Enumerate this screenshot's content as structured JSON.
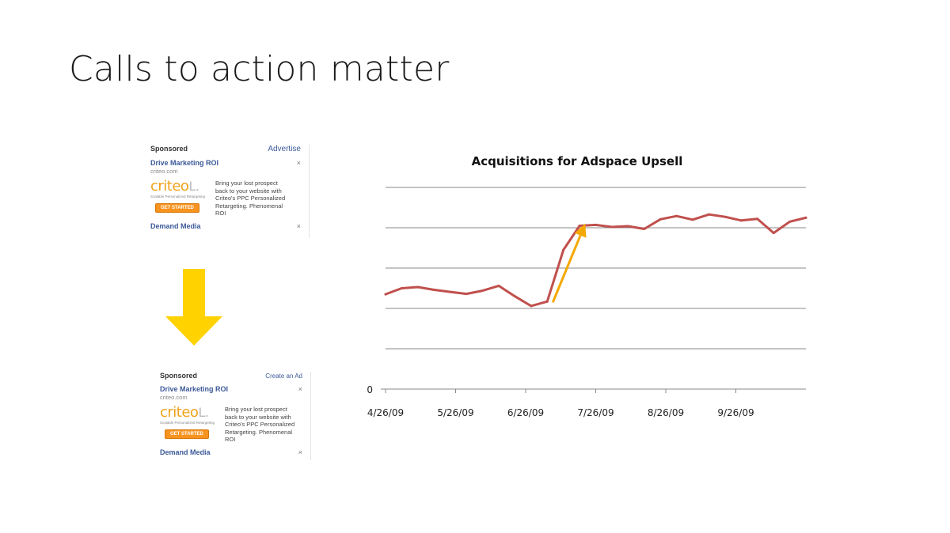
{
  "slide": {
    "title": "Calls to action matter"
  },
  "ads": {
    "top": {
      "sponsored": "Sponsored",
      "header_link": "Advertise",
      "title": "Drive Marketing ROI",
      "close": "×",
      "domain": "criteo.com",
      "logo": "criteo",
      "logo_bracket": "L.",
      "tagline": "Scalable Personalized Retargeting",
      "cta": "GET STARTED",
      "description": "Bring your lost prospect back to your website with Criteo's PPC Personalized Retargeting. Phenomenal ROI",
      "next_title": "Demand Media",
      "next_close": "×"
    },
    "bottom": {
      "sponsored": "Sponsored",
      "header_link": "Create an Ad",
      "title": "Drive Marketing ROI",
      "close": "×",
      "domain": "criteo.com",
      "logo": "criteo",
      "logo_bracket": "L.",
      "tagline": "Scalable Personalized Retargeting",
      "cta": "GET STARTED",
      "description": "Bring your lost prospect back to your website with Criteo's PPC Personalized Retargeting. Phenomenal ROI",
      "next_title": "Demand Media",
      "next_close": "×"
    }
  },
  "colors": {
    "arrow": "#ffd200",
    "line": "#c0504d",
    "annotation_arrow": "#f5a800",
    "grid": "#888888"
  },
  "chart_data": {
    "type": "line",
    "title": "Acquisitions for Adspace Upsell",
    "xlabel": "",
    "ylabel": "",
    "grid": true,
    "legend": "none",
    "y_tick_labels": [
      "0"
    ],
    "ylim": [
      0,
      5
    ],
    "xlim": [
      0,
      24
    ],
    "x_tick_positions": [
      0,
      4,
      8,
      12,
      16,
      20
    ],
    "x_tick_labels": [
      "4/26/09",
      "5/26/09",
      "6/26/09",
      "7/26/09",
      "8/26/09",
      "9/26/09"
    ],
    "series": [
      {
        "name": "Acquisitions",
        "values": [
          2.35,
          2.5,
          2.53,
          2.46,
          2.41,
          2.36,
          2.44,
          2.56,
          2.3,
          2.06,
          2.17,
          3.45,
          4.05,
          4.07,
          4.02,
          4.04,
          3.97,
          4.21,
          4.29,
          4.2,
          4.33,
          4.27,
          4.18,
          4.22,
          3.87,
          4.15,
          4.25
        ]
      }
    ],
    "annotations": [
      {
        "type": "arrow",
        "from": [
          9.55,
          2.15
        ],
        "to": [
          11.4,
          4.1
        ]
      }
    ]
  }
}
